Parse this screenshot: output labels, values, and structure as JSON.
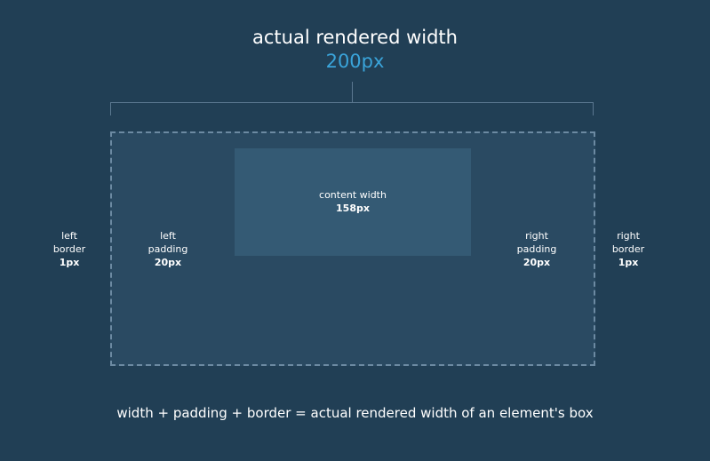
{
  "title": "actual rendered width",
  "width_value": "200px",
  "content": {
    "label": "content width",
    "value": "158px"
  },
  "left_border": {
    "line1": "left",
    "line2": "border",
    "value": "1px"
  },
  "left_padding": {
    "line1": "left",
    "line2": "padding",
    "value": "20px"
  },
  "right_padding": {
    "line1": "right",
    "line2": "padding",
    "value": "20px"
  },
  "right_border": {
    "line1": "right",
    "line2": "border",
    "value": "1px"
  },
  "caption": "width + padding + border = actual rendered width of an element's box",
  "colors": {
    "background": "#213f55",
    "accent": "#3aa4da",
    "box": "#2a4a62",
    "content": "#345a74"
  }
}
